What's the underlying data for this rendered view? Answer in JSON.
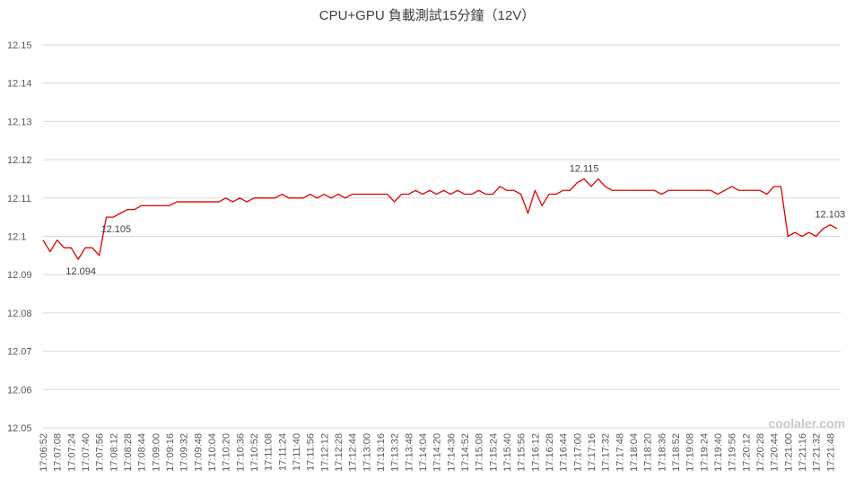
{
  "chart_data": {
    "type": "line",
    "title": "CPU+GPU 負載測試15分鐘（12V）",
    "categories": [
      "17:06:52",
      null,
      "17:07:08",
      null,
      "17:07:24",
      null,
      "17:07:40",
      null,
      "17:07:56",
      null,
      "17:08:12",
      null,
      "17:08:28",
      null,
      "17:08:44",
      null,
      "17:09:00",
      null,
      "17:09:16",
      null,
      "17:09:32",
      null,
      "17:09:48",
      null,
      "17:10:04",
      null,
      "17:10:20",
      null,
      "17:10:36",
      null,
      "17:10:52",
      null,
      "17:11:08",
      null,
      "17:11:24",
      null,
      "17:11:40",
      null,
      "17:11:56",
      null,
      "17:12:12",
      null,
      "17:12:28",
      null,
      "17:12:44",
      null,
      "17:13:00",
      null,
      "17:13:16",
      null,
      "17:13:32",
      null,
      "17:13:48",
      null,
      "17:14:04",
      null,
      "17:14:20",
      null,
      "17:14:36",
      null,
      "17:14:52",
      null,
      "17:15:08",
      null,
      "17:15:24",
      null,
      "17:15:40",
      null,
      "17:15:56",
      null,
      "17:16:12",
      null,
      "17:16:28",
      null,
      "17:16:44",
      null,
      "17:17:00",
      null,
      "17:17:16",
      null,
      "17:17:32",
      null,
      "17:17:48",
      null,
      "17:18:04",
      null,
      "17:18:20",
      null,
      "17:18:36",
      null,
      "17:18:52",
      null,
      "17:19:08",
      null,
      "17:19:24",
      null,
      "17:19:40",
      null,
      "17:19:56",
      null,
      "17:20:12",
      null,
      "17:20:28",
      null,
      "17:20:44",
      null,
      "17:21:00",
      null,
      "17:21:16",
      null,
      "17:21:32",
      null,
      "17:21:48",
      null
    ],
    "series": [
      {
        "color": "#e00000",
        "values": [
          12.099,
          12.096,
          12.099,
          12.097,
          12.097,
          12.094,
          12.097,
          12.097,
          12.095,
          12.105,
          12.105,
          12.106,
          12.107,
          12.107,
          12.108,
          12.108,
          12.108,
          12.108,
          12.108,
          12.109,
          12.109,
          12.109,
          12.109,
          12.109,
          12.109,
          12.109,
          12.11,
          12.109,
          12.11,
          12.109,
          12.11,
          12.11,
          12.11,
          12.11,
          12.111,
          12.11,
          12.11,
          12.11,
          12.111,
          12.11,
          12.111,
          12.11,
          12.111,
          12.11,
          12.111,
          12.111,
          12.111,
          12.111,
          12.111,
          12.111,
          12.109,
          12.111,
          12.111,
          12.112,
          12.111,
          12.112,
          12.111,
          12.112,
          12.111,
          12.112,
          12.111,
          12.111,
          12.112,
          12.111,
          12.111,
          12.113,
          12.112,
          12.112,
          12.111,
          12.106,
          12.112,
          12.108,
          12.111,
          12.111,
          12.112,
          12.112,
          12.114,
          12.115,
          12.113,
          12.115,
          12.113,
          12.112,
          12.112,
          12.112,
          12.112,
          12.112,
          12.112,
          12.112,
          12.111,
          12.112,
          12.112,
          12.112,
          12.112,
          12.112,
          12.112,
          12.112,
          12.111,
          12.112,
          12.113,
          12.112,
          12.112,
          12.112,
          12.112,
          12.111,
          12.113,
          12.113,
          12.1,
          12.101,
          12.1,
          12.101,
          12.1,
          12.102,
          12.103,
          12.102
        ]
      }
    ],
    "data_labels_at": [
      5,
      10,
      77,
      112
    ],
    "ylim": [
      12.05,
      12.15
    ],
    "yticks": [
      12.05,
      12.06,
      12.07,
      12.08,
      12.09,
      12.1,
      12.11,
      12.12,
      12.13,
      12.14,
      12.15
    ],
    "grid": true,
    "watermark": "coolaler.com"
  }
}
